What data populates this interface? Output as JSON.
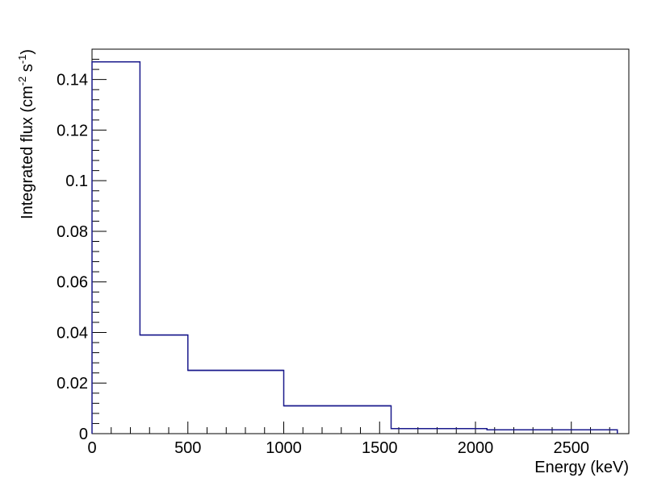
{
  "chart_data": {
    "type": "line",
    "style": "step-histogram",
    "xlabel": "Energy (keV)",
    "ylabel": {
      "prefix": "Integrated  flux (cm",
      "exp1": "-2",
      "mid": " s",
      "exp2": "-1",
      "suffix": ")"
    },
    "xlim": [
      0,
      2800
    ],
    "ylim": [
      0,
      0.152
    ],
    "x_ticks": [
      0,
      500,
      1000,
      1500,
      2000,
      2500
    ],
    "x_tick_labels": [
      "0",
      "500",
      "1000",
      "1500",
      "2000",
      "2500"
    ],
    "y_ticks": [
      0,
      0.02,
      0.04,
      0.06,
      0.08,
      0.1,
      0.12,
      0.14
    ],
    "y_tick_labels": [
      "0",
      "0.02",
      "0.04",
      "0.06",
      "0.08",
      "0.1",
      "0.12",
      "0.14"
    ],
    "grid": false,
    "line_color": "#1a1a8c",
    "bins": [
      {
        "x_low": 0,
        "x_high": 250,
        "y": 0.147
      },
      {
        "x_low": 250,
        "x_high": 500,
        "y": 0.039
      },
      {
        "x_low": 500,
        "x_high": 1000,
        "y": 0.025
      },
      {
        "x_low": 1000,
        "x_high": 1560,
        "y": 0.011
      },
      {
        "x_low": 1560,
        "x_high": 2060,
        "y": 0.002
      },
      {
        "x_low": 2060,
        "x_high": 2740,
        "y": 0.0015
      }
    ]
  }
}
